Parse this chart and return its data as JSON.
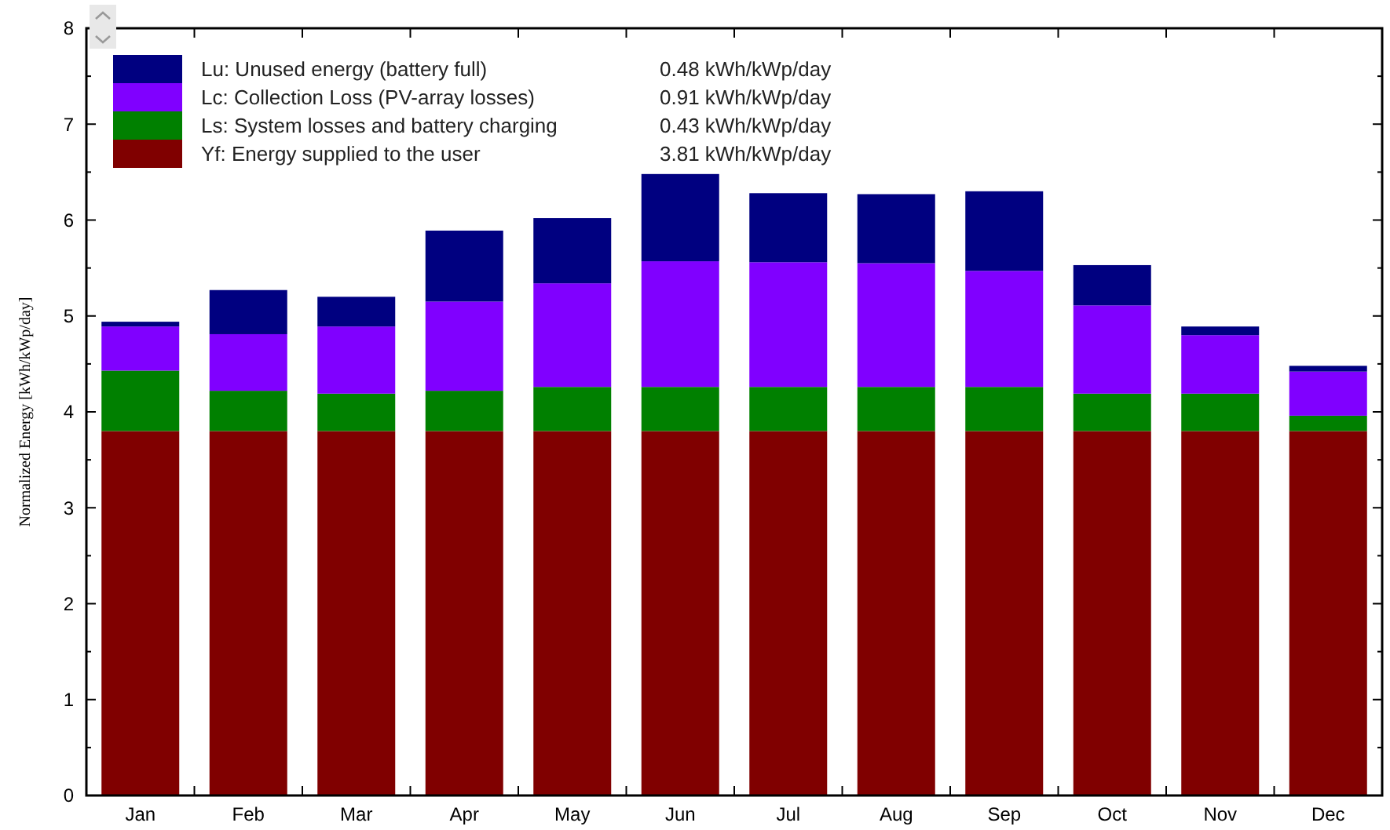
{
  "chart_data": {
    "type": "bar",
    "stacked": true,
    "ylabel": "Normalized Energy [kWh/kWp/day]",
    "categories": [
      "Jan",
      "Feb",
      "Mar",
      "Apr",
      "May",
      "Jun",
      "Jul",
      "Aug",
      "Sep",
      "Oct",
      "Nov",
      "Dec"
    ],
    "series": [
      {
        "name": "Yf: Energy supplied to the user",
        "color": "#800000",
        "values": [
          3.8,
          3.8,
          3.8,
          3.8,
          3.8,
          3.8,
          3.8,
          3.8,
          3.8,
          3.8,
          3.8,
          3.8
        ]
      },
      {
        "name": "Ls: System losses and battery charging",
        "color": "#008000",
        "values": [
          0.63,
          0.42,
          0.39,
          0.42,
          0.46,
          0.46,
          0.46,
          0.46,
          0.46,
          0.39,
          0.39,
          0.16
        ]
      },
      {
        "name": "Lc: Collection Loss (PV-array losses)",
        "color": "#8000ff",
        "values": [
          0.46,
          0.59,
          0.7,
          0.93,
          1.08,
          1.31,
          1.3,
          1.29,
          1.21,
          0.92,
          0.61,
          0.46
        ]
      },
      {
        "name": "Lu: Unused energy (battery full)",
        "color": "#000080",
        "values": [
          0.05,
          0.46,
          0.31,
          0.74,
          0.68,
          0.91,
          0.72,
          0.72,
          0.83,
          0.42,
          0.09,
          0.06
        ]
      }
    ],
    "annotations": [
      "3.81 kWh/kWp/day",
      "0.43 kWh/kWp/day",
      "0.91 kWh/kWp/day",
      "0.48 kWh/kWp/day"
    ],
    "ylim": [
      0,
      8
    ],
    "yticks": [
      0,
      1,
      2,
      3,
      4,
      5,
      6,
      7,
      8
    ],
    "grid": false,
    "legend": "top left"
  }
}
